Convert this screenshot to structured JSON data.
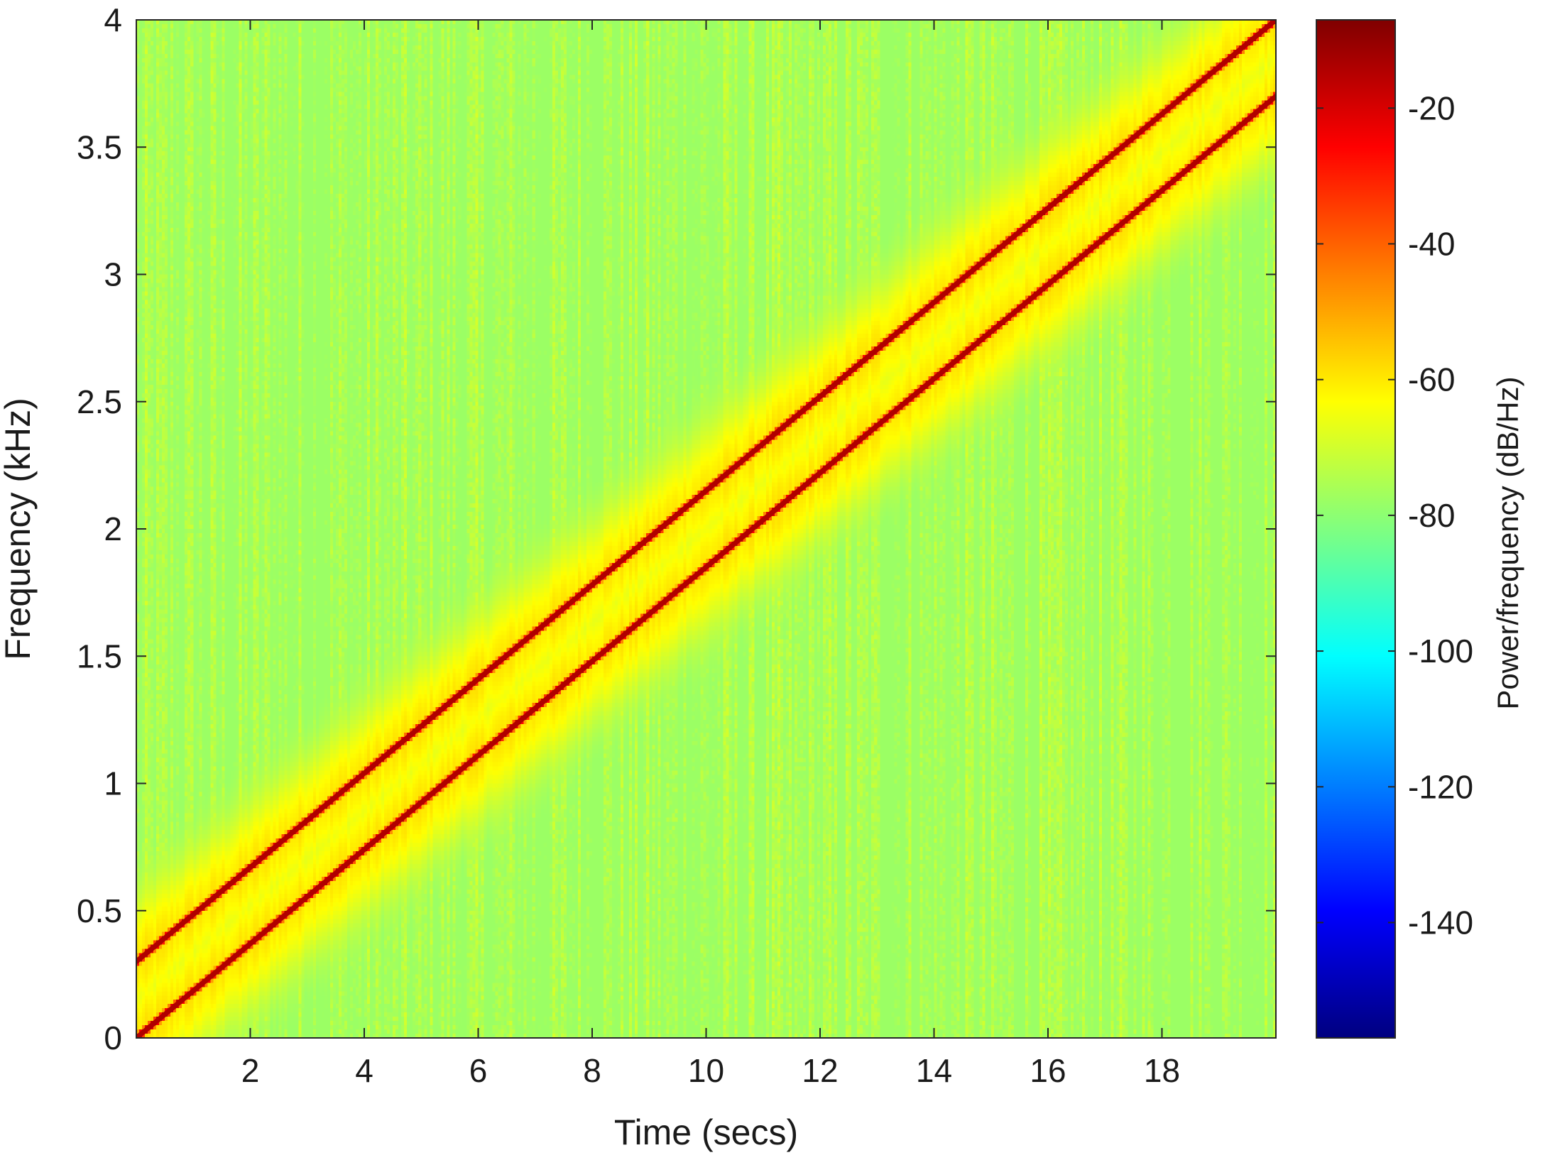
{
  "chart_data": {
    "type": "heatmap",
    "subtype": "spectrogram",
    "title": "",
    "xlabel": "Time (secs)",
    "ylabel": "Frequency (kHz)",
    "xlim": [
      0,
      20
    ],
    "ylim": [
      0,
      4
    ],
    "xticks": [
      2,
      4,
      6,
      8,
      10,
      12,
      14,
      16,
      18
    ],
    "yticks": [
      0,
      0.5,
      1,
      1.5,
      2,
      2.5,
      3,
      3.5,
      4
    ],
    "x_tick_labels": [
      "2",
      "4",
      "6",
      "8",
      "10",
      "12",
      "14",
      "16",
      "18"
    ],
    "y_tick_labels": [
      "0",
      "0.5",
      "1",
      "1.5",
      "2",
      "2.5",
      "3",
      "3.5",
      "4"
    ],
    "colormap": "jet",
    "colorbar": {
      "label": "Power/frequency (dB/Hz)",
      "range": [
        -157,
        -7
      ],
      "ticks": [
        -20,
        -40,
        -60,
        -80,
        -100,
        -120,
        -140
      ],
      "tick_labels": [
        "-20",
        "-40",
        "-60",
        "-80",
        "-100",
        "-120",
        "-140"
      ]
    },
    "background_level_db": -78,
    "noise_db": 6,
    "ridges": [
      {
        "start": [
          0,
          0.3
        ],
        "end": [
          20,
          4.0
        ],
        "peak_db": -10,
        "halo_width_khz": 0.25
      },
      {
        "start": [
          0,
          0.0
        ],
        "end": [
          20,
          3.7
        ],
        "peak_db": -10,
        "halo_width_khz": 0.25
      }
    ]
  }
}
